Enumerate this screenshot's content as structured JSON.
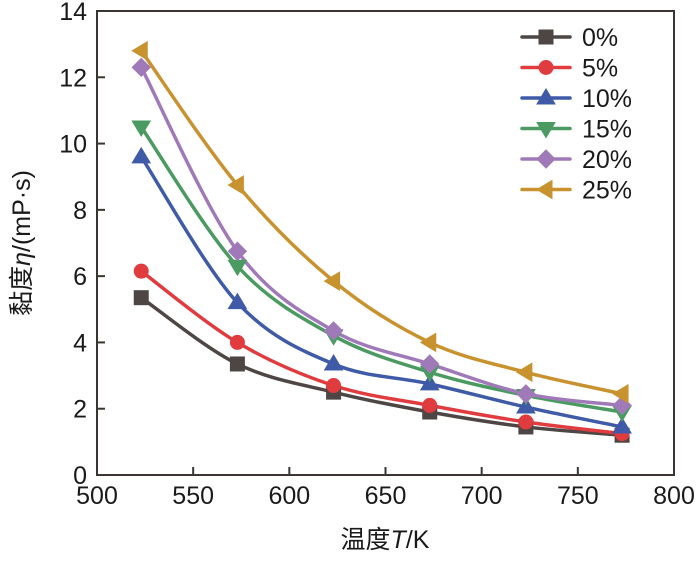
{
  "chart_data": {
    "type": "line",
    "title": "",
    "xlabel": "温度T/K",
    "xlabel_parts": [
      "温度",
      "T",
      "/K"
    ],
    "ylabel": "黏度η/(mP·s)",
    "ylabel_parts": [
      "黏度",
      "η",
      "/(mP·s)"
    ],
    "xlim": [
      500,
      800
    ],
    "ylim": [
      0,
      14
    ],
    "xticks": [
      500,
      550,
      600,
      650,
      700,
      750,
      800
    ],
    "yticks": [
      0,
      2,
      4,
      6,
      8,
      10,
      12,
      14
    ],
    "grid": false,
    "legend_position": "top-right",
    "x": [
      523,
      573,
      623,
      673,
      723,
      773
    ],
    "series": [
      {
        "name": "0%",
        "color": "#4d4644",
        "marker": "square",
        "values": [
          5.35,
          3.35,
          2.5,
          1.9,
          1.45,
          1.2
        ]
      },
      {
        "name": "5%",
        "color": "#e03c3f",
        "marker": "circle",
        "values": [
          6.15,
          4.0,
          2.7,
          2.1,
          1.6,
          1.25
        ]
      },
      {
        "name": "10%",
        "color": "#3f5ba8",
        "marker": "triangle-up",
        "values": [
          9.6,
          5.2,
          3.35,
          2.75,
          2.05,
          1.45
        ]
      },
      {
        "name": "15%",
        "color": "#4a9a62",
        "marker": "triangle-down",
        "values": [
          10.5,
          6.3,
          4.2,
          3.1,
          2.4,
          1.9
        ]
      },
      {
        "name": "20%",
        "color": "#a07ab8",
        "marker": "diamond",
        "values": [
          12.3,
          6.75,
          4.35,
          3.35,
          2.45,
          2.1
        ]
      },
      {
        "name": "25%",
        "color": "#c8922e",
        "marker": "triangle-left",
        "values": [
          12.8,
          8.75,
          5.85,
          4.0,
          3.1,
          2.45
        ]
      }
    ]
  }
}
